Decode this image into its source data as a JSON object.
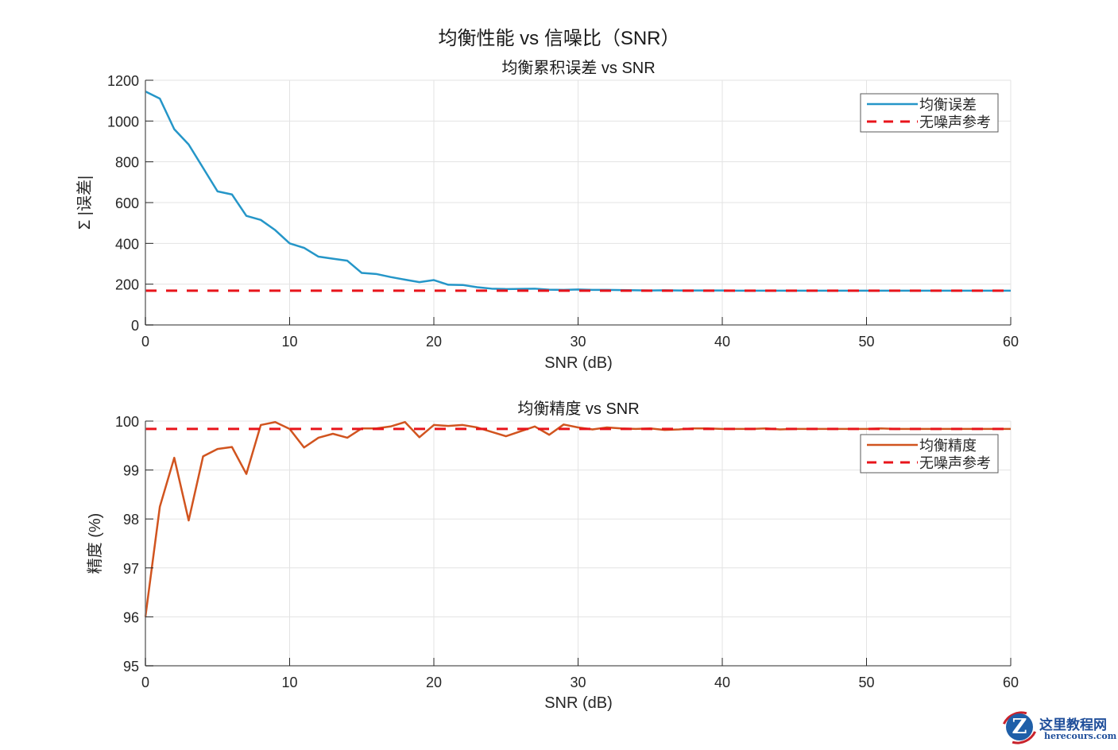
{
  "figure": {
    "suptitle": "均衡性能 vs 信噪比（SNR）"
  },
  "colors": {
    "error_line": "#2596c8",
    "accuracy_line": "#d1541f",
    "reference_line": "#e8141b",
    "grid": "#e3e3e3",
    "axis": "#707070"
  },
  "chart_data": [
    {
      "type": "line",
      "title": "均衡累积误差 vs SNR",
      "xlabel": "SNR (dB)",
      "ylabel": "Σ |误差|",
      "xlim": [
        0,
        60
      ],
      "ylim": [
        0,
        1200
      ],
      "xticks": [
        0,
        10,
        20,
        30,
        40,
        50,
        60
      ],
      "yticks": [
        0,
        200,
        400,
        600,
        800,
        1000,
        1200
      ],
      "grid": true,
      "legend_position": "northeast",
      "x": [
        0,
        1,
        2,
        3,
        4,
        5,
        6,
        7,
        8,
        9,
        10,
        11,
        12,
        13,
        14,
        15,
        16,
        17,
        18,
        19,
        20,
        21,
        22,
        23,
        24,
        25,
        26,
        27,
        28,
        29,
        30,
        31,
        32,
        33,
        34,
        35,
        36,
        37,
        38,
        39,
        40,
        41,
        42,
        43,
        44,
        45,
        46,
        47,
        48,
        49,
        50,
        51,
        52,
        53,
        54,
        55,
        56,
        57,
        58,
        59,
        60
      ],
      "series": [
        {
          "name": "均衡误差",
          "style": "solid",
          "values": [
            1145,
            1110,
            960,
            885,
            770,
            655,
            640,
            535,
            515,
            465,
            400,
            378,
            335,
            325,
            315,
            255,
            250,
            235,
            222,
            210,
            220,
            197,
            196,
            185,
            178,
            176,
            177,
            178,
            173,
            172,
            174,
            172,
            172,
            171,
            170,
            169,
            170,
            169,
            169,
            169,
            169,
            168,
            168,
            168,
            168,
            168,
            168,
            168,
            168,
            168,
            168,
            168,
            168,
            168,
            168,
            168,
            168,
            168,
            168,
            168,
            168
          ]
        },
        {
          "name": "无噪声参考",
          "style": "dashed",
          "values": [
            168,
            168
          ]
        }
      ]
    },
    {
      "type": "line",
      "title": "均衡精度 vs SNR",
      "xlabel": "SNR (dB)",
      "ylabel": "精度 (%)",
      "xlim": [
        0,
        60
      ],
      "ylim": [
        95,
        100
      ],
      "xticks": [
        0,
        10,
        20,
        30,
        40,
        50,
        60
      ],
      "yticks": [
        95,
        96,
        97,
        98,
        99,
        100
      ],
      "grid": true,
      "legend_position": "northeast",
      "x": [
        0,
        1,
        2,
        3,
        4,
        5,
        6,
        7,
        8,
        9,
        10,
        11,
        12,
        13,
        14,
        15,
        16,
        17,
        18,
        19,
        20,
        21,
        22,
        23,
        24,
        25,
        26,
        27,
        28,
        29,
        30,
        31,
        32,
        33,
        34,
        35,
        36,
        37,
        38,
        39,
        40,
        41,
        42,
        43,
        44,
        45,
        46,
        47,
        48,
        49,
        50,
        51,
        52,
        53,
        54,
        55,
        56,
        57,
        58,
        59,
        60
      ],
      "series": [
        {
          "name": "均衡精度",
          "style": "solid",
          "values": [
            96.0,
            98.25,
            99.25,
            97.97,
            99.28,
            99.43,
            99.47,
            98.92,
            99.92,
            99.98,
            99.84,
            99.46,
            99.66,
            99.74,
            99.66,
            99.85,
            99.85,
            99.89,
            99.98,
            99.67,
            99.92,
            99.9,
            99.92,
            99.87,
            99.78,
            99.69,
            99.79,
            99.89,
            99.72,
            99.93,
            99.87,
            99.83,
            99.87,
            99.85,
            99.84,
            99.85,
            99.82,
            99.83,
            99.85,
            99.85,
            99.84,
            99.84,
            99.84,
            99.85,
            99.83,
            99.84,
            99.84,
            99.84,
            99.84,
            99.84,
            99.84,
            99.85,
            99.84,
            99.84,
            99.84,
            99.84,
            99.84,
            99.84,
            99.84,
            99.84,
            99.84
          ]
        },
        {
          "name": "无噪声参考",
          "style": "dashed",
          "values": [
            99.84,
            99.84
          ]
        }
      ]
    }
  ],
  "watermark": {
    "logo_letter": "Z",
    "cn_text": "这里教程网",
    "en_text": "herecours.com"
  }
}
